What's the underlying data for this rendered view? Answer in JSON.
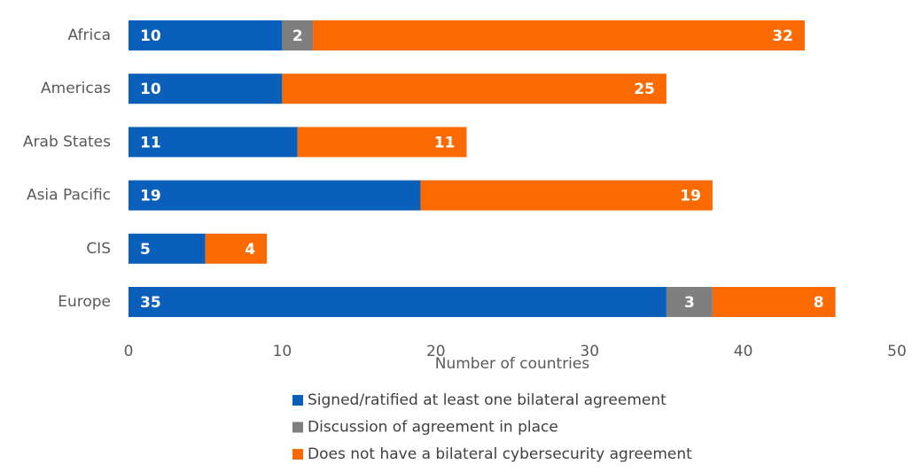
{
  "chart_data": {
    "type": "stacked-bar-horizontal",
    "categories": [
      "Africa",
      "Americas",
      "Arab States",
      "Asia Pacific",
      "CIS",
      "Europe"
    ],
    "series": [
      {
        "name": "Signed/ratified at least one bilateral agreement",
        "color": "#0a5fba",
        "values": [
          10,
          10,
          11,
          19,
          5,
          35
        ]
      },
      {
        "name": "Discussion of agreement in place",
        "color": "#7f7f7f",
        "values": [
          2,
          null,
          null,
          null,
          null,
          3
        ]
      },
      {
        "name": "Does not have a bilateral cybersecurity agreement",
        "color": "#fa6a00",
        "values": [
          32,
          25,
          11,
          19,
          4,
          8
        ]
      }
    ],
    "xlabel": "Number of countries",
    "xlim": [
      0,
      50
    ],
    "xticks": [
      0,
      10,
      20,
      30,
      40,
      50
    ]
  }
}
